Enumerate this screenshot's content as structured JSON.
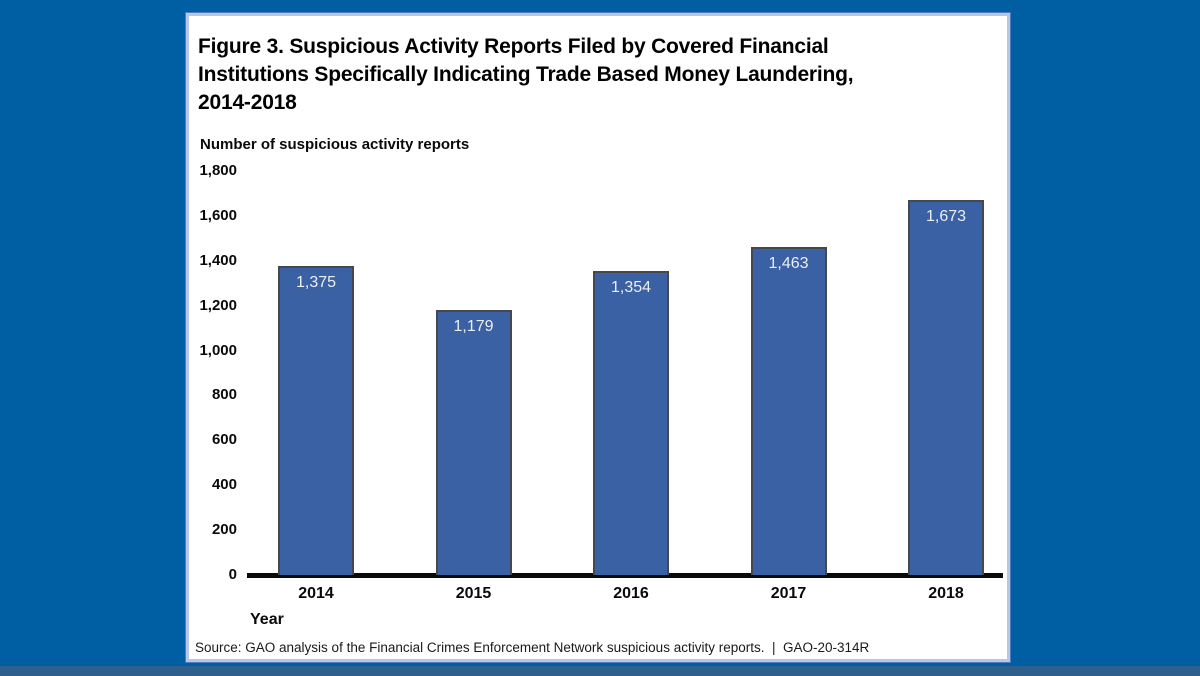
{
  "figure": {
    "title_lines": [
      "Figure 3. Suspicious Activity Reports Filed by Covered Financial",
      "Institutions Specifically Indicating Trade Based Money Laundering,",
      "2014-2018"
    ],
    "y_axis_unit": "Number of suspicious activity reports",
    "x_axis_title": "Year",
    "source": "Source: GAO analysis of the Financial Crimes Enforcement Network suspicious activity reports.  |  GAO-20-314R"
  },
  "chart_data": {
    "type": "bar",
    "title": "Figure 3. Suspicious Activity Reports Filed by Covered Financial Institutions Specifically Indicating Trade Based Money Laundering, 2014-2018",
    "categories": [
      "2014",
      "2015",
      "2016",
      "2017",
      "2018"
    ],
    "values": [
      1375,
      1179,
      1354,
      1463,
      1673
    ],
    "value_labels": [
      "1,375",
      "1,179",
      "1,354",
      "1,463",
      "1,673"
    ],
    "xlabel": "Year",
    "ylabel": "Number of suspicious activity reports",
    "ylim": [
      0,
      1800
    ],
    "yticks": [
      0,
      200,
      400,
      600,
      800,
      1000,
      1200,
      1400,
      1600,
      1800
    ],
    "ytick_labels": [
      "0",
      "200",
      "400",
      "600",
      "800",
      "1,000",
      "1,200",
      "1,400",
      "1,600",
      "1,800"
    ],
    "grid": false,
    "legend": false,
    "colors": {
      "bar_fill": "#3A61A4",
      "bar_border": "#45484F",
      "value_label": "#ECEEF3",
      "axis_line": "#0A0A0A",
      "background_blue": "#005FA3",
      "bottom_strip": "#2E5F8D",
      "panel_border": "#B9C6E8"
    }
  }
}
